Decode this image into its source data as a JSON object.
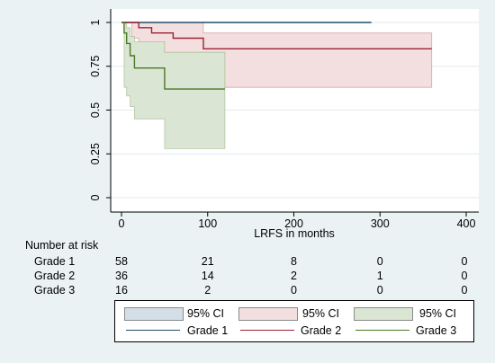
{
  "chart_data": {
    "type": "line",
    "title": "",
    "xlabel": "LRFS in months",
    "ylabel": "",
    "xlim": [
      -5,
      410
    ],
    "ylim": [
      -0.03,
      1.05
    ],
    "x_ticks": [
      "0",
      "100",
      "200",
      "300",
      "400"
    ],
    "y_ticks": [
      "0",
      "0.25",
      "0.5",
      "0.75",
      "1"
    ],
    "grid": true,
    "series": [
      {
        "name": "Grade 1",
        "color": "#1f4e6b",
        "steps": [
          [
            0,
            1
          ],
          [
            290,
            1
          ]
        ],
        "ci_upper": [
          [
            0,
            1
          ],
          [
            290,
            1
          ]
        ],
        "ci_lower": [
          [
            0,
            1
          ],
          [
            290,
            1
          ]
        ]
      },
      {
        "name": "Grade 2",
        "color": "#9b2335",
        "steps": [
          [
            0,
            1
          ],
          [
            20,
            0.97
          ],
          [
            35,
            0.94
          ],
          [
            60,
            0.91
          ],
          [
            95,
            0.85
          ],
          [
            360,
            0.85
          ]
        ],
        "ci_upper": [
          [
            0,
            1
          ],
          [
            60,
            1
          ],
          [
            95,
            0.94
          ],
          [
            360,
            0.94
          ]
        ],
        "ci_lower": [
          [
            0,
            1
          ],
          [
            12,
            0.91
          ],
          [
            20,
            0.85
          ],
          [
            35,
            0.8
          ],
          [
            60,
            0.72
          ],
          [
            95,
            0.63
          ],
          [
            360,
            0.63
          ]
        ]
      },
      {
        "name": "Grade 3",
        "color": "#4b7a24",
        "steps": [
          [
            0,
            1
          ],
          [
            3,
            0.94
          ],
          [
            6,
            0.88
          ],
          [
            10,
            0.81
          ],
          [
            15,
            0.74
          ],
          [
            50,
            0.62
          ],
          [
            120,
            0.62
          ]
        ],
        "ci_upper": [
          [
            0,
            1
          ],
          [
            3,
            1
          ],
          [
            6,
            0.97
          ],
          [
            10,
            0.92
          ],
          [
            15,
            0.89
          ],
          [
            50,
            0.83
          ],
          [
            120,
            0.83
          ]
        ],
        "ci_lower": [
          [
            0,
            1
          ],
          [
            3,
            0.63
          ],
          [
            6,
            0.58
          ],
          [
            10,
            0.52
          ],
          [
            15,
            0.45
          ],
          [
            50,
            0.28
          ],
          [
            120,
            0.28
          ]
        ]
      }
    ],
    "ci_colors": {
      "Grade 1": "#d3dee6",
      "Grade 2": "#f3dfe0",
      "Grade 3": "#dbe5d3"
    },
    "risk_table": {
      "title": "Number at risk",
      "times": [
        0,
        100,
        200,
        300,
        400
      ],
      "rows": [
        {
          "label": "Grade 1",
          "counts": [
            "58",
            "21",
            "8",
            "0",
            "0"
          ]
        },
        {
          "label": "Grade 2",
          "counts": [
            "36",
            "14",
            "2",
            "1",
            "0"
          ]
        },
        {
          "label": "Grade 3",
          "counts": [
            "16",
            "2",
            "0",
            "0",
            "0"
          ]
        }
      ]
    },
    "legend": {
      "placement": "bottom",
      "ci_label": "95% CI",
      "entries": [
        "Grade 1",
        "Grade 2",
        "Grade 3"
      ]
    }
  }
}
